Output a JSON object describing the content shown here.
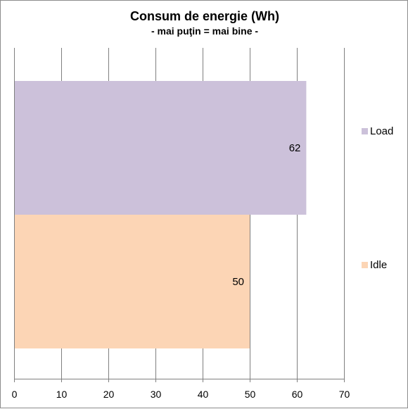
{
  "chart_data": {
    "type": "bar",
    "orientation": "horizontal",
    "title": "Consum de energie (Wh)",
    "subtitle": "- mai puţin = mai bine -",
    "xlabel": "",
    "ylabel": "",
    "xlim": [
      0,
      70
    ],
    "x_ticks": [
      0,
      10,
      20,
      30,
      40,
      50,
      60,
      70
    ],
    "grid": true,
    "legend_position": "right",
    "series": [
      {
        "name": "Load",
        "value": 62,
        "color": "#ccc1da"
      },
      {
        "name": "Idle",
        "value": 50,
        "color": "#fcd5b5"
      }
    ]
  }
}
